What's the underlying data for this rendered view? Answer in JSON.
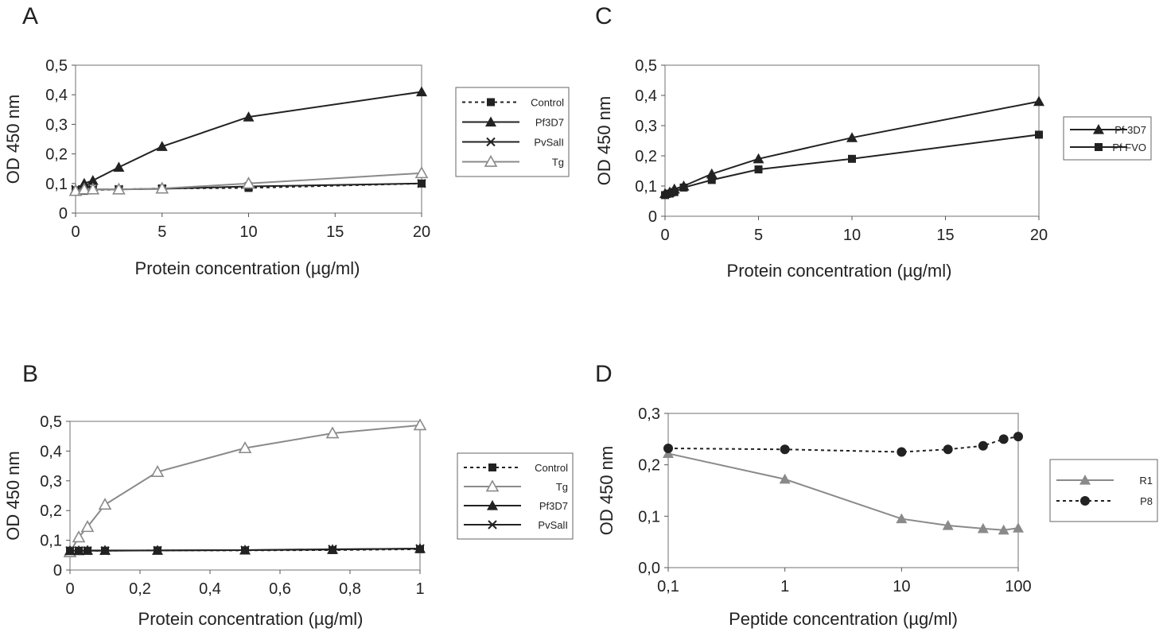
{
  "chart_data": [
    {
      "panel": "A",
      "type": "line",
      "xlabel": "Protein concentration (µg/ml)",
      "ylabel": "OD 450 nm",
      "xlim": [
        0,
        20
      ],
      "ylim": [
        0,
        0.5
      ],
      "xticks": [
        0,
        5,
        10,
        15,
        20
      ],
      "yticks": [
        0,
        0.1,
        0.2,
        0.3,
        0.4,
        0.5
      ],
      "ytick_labels": [
        "0",
        "0,1",
        "0,2",
        "0,3",
        "0,4",
        "0,5"
      ],
      "legend_position": "right",
      "series": [
        {
          "name": "Control",
          "color": "#222222",
          "dash": true,
          "marker": "square",
          "x": [
            0,
            0.5,
            1,
            2.5,
            5,
            10,
            20
          ],
          "y": [
            0.075,
            0.075,
            0.078,
            0.08,
            0.083,
            0.085,
            0.1
          ]
        },
        {
          "name": "Pf3D7",
          "color": "#222222",
          "dash": false,
          "marker": "triangle",
          "x": [
            0,
            0.5,
            1,
            2.5,
            5,
            10,
            20
          ],
          "y": [
            0.08,
            0.1,
            0.11,
            0.155,
            0.225,
            0.325,
            0.41
          ]
        },
        {
          "name": "PvSalI",
          "color": "#222222",
          "dash": false,
          "marker": "x",
          "x": [
            0,
            0.5,
            1,
            2.5,
            5,
            10,
            20
          ],
          "y": [
            0.08,
            0.08,
            0.08,
            0.08,
            0.082,
            0.09,
            0.1
          ]
        },
        {
          "name": "Tg",
          "color": "#8a8a8a",
          "dash": false,
          "marker": "triangle-open",
          "x": [
            0,
            0.5,
            1,
            2.5,
            5,
            10,
            20
          ],
          "y": [
            0.075,
            0.08,
            0.08,
            0.08,
            0.083,
            0.1,
            0.135
          ]
        }
      ]
    },
    {
      "panel": "C",
      "type": "line",
      "xlabel": "Protein concentration (µg/ml)",
      "ylabel": "OD 450 nm",
      "xlim": [
        0,
        20
      ],
      "ylim": [
        0,
        0.5
      ],
      "xticks": [
        0,
        5,
        10,
        15,
        20
      ],
      "yticks": [
        0,
        0.1,
        0.2,
        0.3,
        0.4,
        0.5
      ],
      "ytick_labels": [
        "0",
        "0,1",
        "0,2",
        "0,3",
        "0,4",
        "0,5"
      ],
      "legend_position": "right",
      "series": [
        {
          "name": "Pf 3D7",
          "color": "#222222",
          "dash": false,
          "marker": "triangle",
          "x": [
            0,
            0.25,
            0.5,
            1,
            2.5,
            5,
            10,
            20
          ],
          "y": [
            0.075,
            0.08,
            0.09,
            0.1,
            0.14,
            0.19,
            0.26,
            0.38
          ]
        },
        {
          "name": "Pf FVO",
          "color": "#222222",
          "dash": false,
          "marker": "square",
          "x": [
            0,
            0.25,
            0.5,
            1,
            2.5,
            5,
            10,
            20
          ],
          "y": [
            0.07,
            0.075,
            0.08,
            0.095,
            0.12,
            0.155,
            0.19,
            0.27
          ]
        }
      ]
    },
    {
      "panel": "B",
      "type": "line",
      "xlabel": "Protein concentration (µg/ml)",
      "ylabel": "OD 450 nm",
      "xlim": [
        0,
        1
      ],
      "ylim": [
        0,
        0.5
      ],
      "xticks": [
        0,
        0.2,
        0.4,
        0.6,
        0.8,
        1
      ],
      "xtick_labels": [
        "0",
        "0,2",
        "0,4",
        "0,6",
        "0,8",
        "1"
      ],
      "yticks": [
        0,
        0.1,
        0.2,
        0.3,
        0.4,
        0.5
      ],
      "ytick_labels": [
        "0",
        "0,1",
        "0,2",
        "0,3",
        "0,4",
        "0,5"
      ],
      "legend_position": "right",
      "series": [
        {
          "name": "Control",
          "color": "#222222",
          "dash": true,
          "marker": "square",
          "x": [
            0,
            0.025,
            0.05,
            0.1,
            0.25,
            0.5,
            0.75,
            1
          ],
          "y": [
            0.065,
            0.065,
            0.065,
            0.065,
            0.066,
            0.066,
            0.067,
            0.07
          ]
        },
        {
          "name": "Tg",
          "color": "#8a8a8a",
          "dash": false,
          "marker": "triangle-open",
          "x": [
            0,
            0.025,
            0.05,
            0.1,
            0.25,
            0.5,
            0.75,
            1
          ],
          "y": [
            0.06,
            0.11,
            0.145,
            0.22,
            0.33,
            0.41,
            0.46,
            0.487
          ]
        },
        {
          "name": "Pf3D7",
          "color": "#222222",
          "dash": false,
          "marker": "triangle",
          "x": [
            0,
            0.025,
            0.05,
            0.1,
            0.25,
            0.5,
            0.75,
            1
          ],
          "y": [
            0.065,
            0.065,
            0.066,
            0.066,
            0.066,
            0.067,
            0.069,
            0.072
          ]
        },
        {
          "name": "PvSalI",
          "color": "#222222",
          "dash": false,
          "marker": "x",
          "x": [
            0,
            0.025,
            0.05,
            0.1,
            0.25,
            0.5,
            0.75,
            1
          ],
          "y": [
            0.065,
            0.065,
            0.065,
            0.065,
            0.066,
            0.067,
            0.07,
            0.072
          ]
        }
      ]
    },
    {
      "panel": "D",
      "type": "line",
      "xlabel": "Peptide concentration (µg/ml)",
      "ylabel": "OD 450 nm",
      "xscale": "log",
      "xlim": [
        0.1,
        100
      ],
      "ylim": [
        0,
        0.3
      ],
      "xticks": [
        0.1,
        1,
        10,
        100
      ],
      "xtick_labels": [
        "0,1",
        "1",
        "10",
        "100"
      ],
      "yticks": [
        0,
        0.1,
        0.2,
        0.3
      ],
      "ytick_labels": [
        "0,0",
        "0,1",
        "0,2",
        "0,3"
      ],
      "legend_position": "right",
      "series": [
        {
          "name": "R1",
          "color": "#8a8a8a",
          "dash": false,
          "marker": "triangle",
          "x": [
            0.1,
            1,
            10,
            25,
            50,
            75,
            100
          ],
          "y": [
            0.222,
            0.172,
            0.095,
            0.082,
            0.076,
            0.073,
            0.077
          ]
        },
        {
          "name": "P8",
          "color": "#222222",
          "dash": true,
          "marker": "circle",
          "x": [
            0.1,
            1,
            10,
            25,
            50,
            75,
            100
          ],
          "y": [
            0.232,
            0.23,
            0.225,
            0.23,
            0.237,
            0.25,
            0.255
          ]
        }
      ]
    }
  ]
}
